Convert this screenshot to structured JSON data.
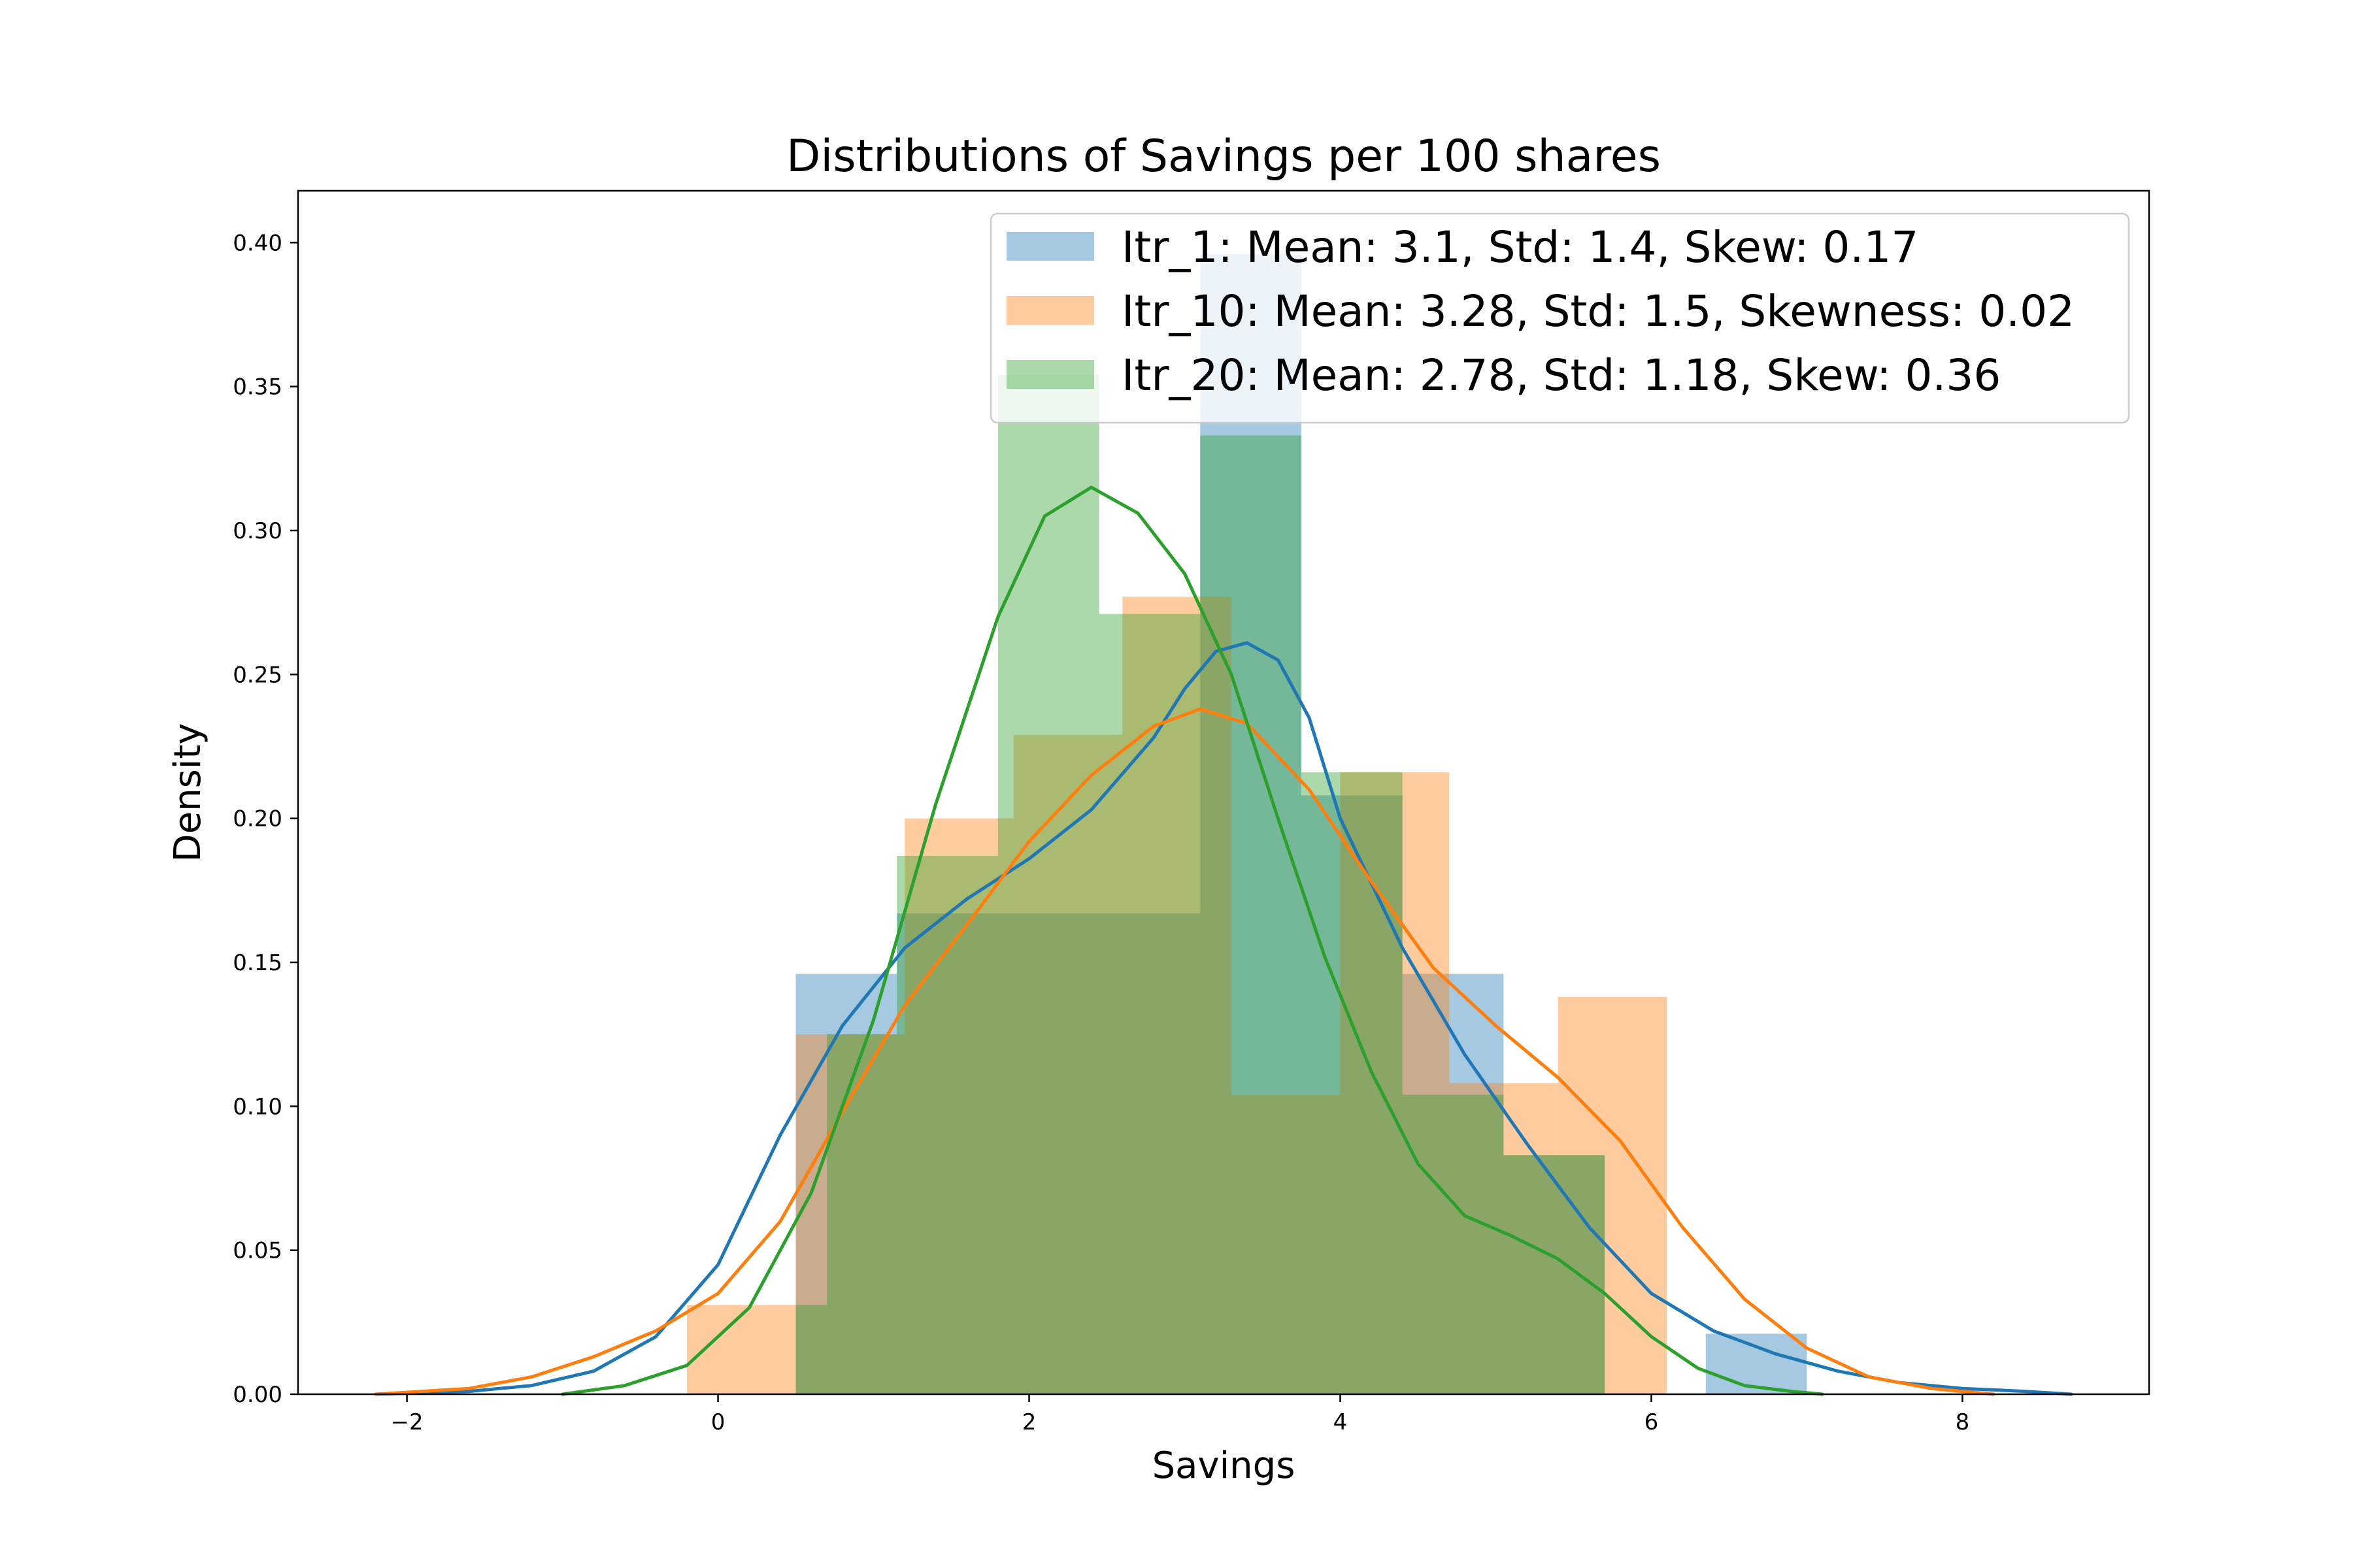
{
  "chart_data": {
    "type": "histogram",
    "title": "Distributions of Savings per 100 shares",
    "xlabel": "Savings",
    "ylabel": "Density",
    "xlim": [
      -2.7,
      9.2
    ],
    "ylim": [
      0,
      0.418
    ],
    "x_ticks": [
      -2,
      0,
      2,
      4,
      6,
      8
    ],
    "x_tick_labels": [
      "−2",
      "0",
      "2",
      "4",
      "6",
      "8"
    ],
    "y_ticks": [
      0,
      0.05,
      0.1,
      0.15,
      0.2,
      0.25,
      0.3,
      0.35,
      0.4
    ],
    "y_tick_labels": [
      "0.00",
      "0.05",
      "0.10",
      "0.15",
      "0.20",
      "0.25",
      "0.30",
      "0.35",
      "0.40"
    ],
    "grid": false,
    "legend_position": "top-right",
    "series": [
      {
        "name": "Itr_1: Mean: 3.1, Std: 1.4, Skew: 0.17",
        "color": "#1f77b4",
        "bins": [
          {
            "x0": 0.5,
            "x1": 1.15,
            "density": 0.146
          },
          {
            "x0": 1.15,
            "x1": 1.8,
            "density": 0.167
          },
          {
            "x0": 1.8,
            "x1": 2.45,
            "density": 0.167
          },
          {
            "x0": 2.45,
            "x1": 3.1,
            "density": 0.167
          },
          {
            "x0": 3.1,
            "x1": 3.75,
            "density": 0.396
          },
          {
            "x0": 3.75,
            "x1": 4.4,
            "density": 0.208
          },
          {
            "x0": 4.4,
            "x1": 5.05,
            "density": 0.146
          },
          {
            "x0": 5.05,
            "x1": 5.7,
            "density": 0.083
          },
          {
            "x0": 5.7,
            "x1": 6.35,
            "density": 0.0
          },
          {
            "x0": 6.35,
            "x1": 7.0,
            "density": 0.021
          }
        ],
        "kde": {
          "x": [
            -2.2,
            -1.6,
            -1.2,
            -0.8,
            -0.4,
            0.0,
            0.4,
            0.8,
            1.2,
            1.6,
            2.0,
            2.4,
            2.8,
            3.0,
            3.2,
            3.4,
            3.6,
            3.8,
            4.0,
            4.4,
            4.8,
            5.2,
            5.6,
            6.0,
            6.4,
            6.8,
            7.2,
            7.6,
            8.0,
            8.4,
            8.7
          ],
          "y": [
            0.0,
            0.001,
            0.003,
            0.008,
            0.02,
            0.045,
            0.09,
            0.128,
            0.155,
            0.172,
            0.186,
            0.203,
            0.228,
            0.245,
            0.258,
            0.261,
            0.255,
            0.235,
            0.2,
            0.155,
            0.118,
            0.087,
            0.058,
            0.035,
            0.022,
            0.014,
            0.008,
            0.004,
            0.002,
            0.001,
            0.0
          ]
        }
      },
      {
        "name": "Itr_10: Mean: 3.28, Std: 1.5, Skewness: 0.02",
        "color": "#ff7f0e",
        "bins": [
          {
            "x0": -0.2,
            "x1": 0.5,
            "density": 0.031
          },
          {
            "x0": 0.5,
            "x1": 1.2,
            "density": 0.125
          },
          {
            "x0": 1.2,
            "x1": 1.9,
            "density": 0.2
          },
          {
            "x0": 1.9,
            "x1": 2.6,
            "density": 0.229
          },
          {
            "x0": 2.6,
            "x1": 3.3,
            "density": 0.277
          },
          {
            "x0": 3.3,
            "x1": 4.0,
            "density": 0.104
          },
          {
            "x0": 4.0,
            "x1": 4.7,
            "density": 0.216
          },
          {
            "x0": 4.7,
            "x1": 5.4,
            "density": 0.108
          },
          {
            "x0": 5.4,
            "x1": 6.1,
            "density": 0.138
          },
          {
            "x0": 6.1,
            "x1": 6.8,
            "density": 0.0
          }
        ],
        "kde": {
          "x": [
            -2.2,
            -1.6,
            -1.2,
            -0.8,
            -0.4,
            0.0,
            0.4,
            0.8,
            1.2,
            1.6,
            2.0,
            2.4,
            2.8,
            3.1,
            3.4,
            3.8,
            4.2,
            4.6,
            5.0,
            5.4,
            5.8,
            6.2,
            6.6,
            7.0,
            7.4,
            7.8,
            8.2
          ],
          "y": [
            0.0,
            0.002,
            0.006,
            0.013,
            0.022,
            0.035,
            0.06,
            0.098,
            0.135,
            0.163,
            0.192,
            0.215,
            0.232,
            0.238,
            0.233,
            0.21,
            0.178,
            0.148,
            0.128,
            0.11,
            0.088,
            0.058,
            0.033,
            0.016,
            0.006,
            0.002,
            0.0
          ]
        }
      },
      {
        "name": "Itr_20: Mean: 2.78, Std: 1.18, Skew: 0.36",
        "color": "#2ca02c",
        "bins": [
          {
            "x0": 0.5,
            "x1": 0.7,
            "density": 0.031
          },
          {
            "x0": 0.7,
            "x1": 1.15,
            "density": 0.125
          },
          {
            "x0": 1.15,
            "x1": 1.8,
            "density": 0.187
          },
          {
            "x0": 1.8,
            "x1": 2.45,
            "density": 0.354
          },
          {
            "x0": 2.45,
            "x1": 3.1,
            "density": 0.271
          },
          {
            "x0": 3.1,
            "x1": 3.75,
            "density": 0.333
          },
          {
            "x0": 3.75,
            "x1": 4.4,
            "density": 0.216
          },
          {
            "x0": 4.4,
            "x1": 5.05,
            "density": 0.104
          },
          {
            "x0": 5.05,
            "x1": 5.7,
            "density": 0.083
          }
        ],
        "kde": {
          "x": [
            -1.0,
            -0.6,
            -0.2,
            0.2,
            0.6,
            1.0,
            1.4,
            1.8,
            2.1,
            2.4,
            2.7,
            3.0,
            3.3,
            3.6,
            3.9,
            4.2,
            4.5,
            4.8,
            5.1,
            5.4,
            5.7,
            6.0,
            6.3,
            6.6,
            6.9,
            7.1
          ],
          "y": [
            0.0,
            0.003,
            0.01,
            0.03,
            0.07,
            0.13,
            0.205,
            0.27,
            0.305,
            0.315,
            0.306,
            0.285,
            0.25,
            0.2,
            0.152,
            0.112,
            0.08,
            0.062,
            0.055,
            0.047,
            0.035,
            0.02,
            0.009,
            0.003,
            0.001,
            0.0
          ]
        }
      }
    ]
  }
}
